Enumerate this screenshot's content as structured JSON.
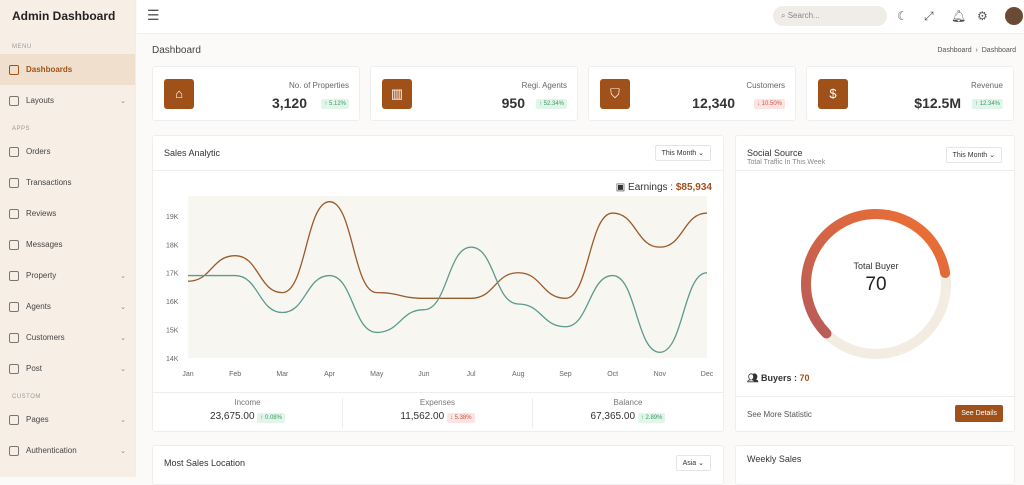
{
  "app_title": "Admin Dashboard",
  "sidebar": {
    "sections": [
      "MENU",
      "APPS",
      "CUSTOM"
    ],
    "items": [
      {
        "label": "Dashboards",
        "chev": false
      },
      {
        "label": "Layouts",
        "chev": true
      },
      {
        "label": "Orders",
        "chev": false
      },
      {
        "label": "Transactions",
        "chev": false
      },
      {
        "label": "Reviews",
        "chev": false
      },
      {
        "label": "Messages",
        "chev": false
      },
      {
        "label": "Property",
        "chev": true
      },
      {
        "label": "Agents",
        "chev": true
      },
      {
        "label": "Customers",
        "chev": true
      },
      {
        "label": "Post",
        "chev": true
      },
      {
        "label": "Pages",
        "chev": true
      },
      {
        "label": "Authentication",
        "chev": true
      }
    ]
  },
  "topbar": {
    "search_placeholder": "Search..."
  },
  "page": {
    "title": "Dashboard",
    "breadcrumb": [
      "Dashboard",
      "Dashboard"
    ]
  },
  "stats": [
    {
      "label": "No. of Properties",
      "value": "3,120",
      "change": "↑ 5.12%",
      "trend": "up",
      "icon": "house-icon"
    },
    {
      "label": "Regi. Agents",
      "value": "950",
      "change": "↑ 52.34%",
      "trend": "up",
      "icon": "building-icon"
    },
    {
      "label": "Customers",
      "value": "12,340",
      "change": "↓ 10.50%",
      "trend": "down",
      "icon": "user-shield-icon"
    },
    {
      "label": "Revenue",
      "value": "$12.5M",
      "change": "↑ 12.34%",
      "trend": "up",
      "icon": "money-bag-icon"
    }
  ],
  "sales": {
    "title": "Sales Analytic",
    "filter": "This Month",
    "earnings_label": "Earnings :",
    "earnings_value": "$85,934",
    "summary": [
      {
        "label": "Income",
        "value": "23,675.00",
        "change": "↑ 0.08%",
        "trend": "up"
      },
      {
        "label": "Expenses",
        "value": "11,562.00",
        "change": "↓ 5.38%",
        "trend": "down"
      },
      {
        "label": "Balance",
        "value": "67,365.00",
        "change": "↑ 2.89%",
        "trend": "up"
      }
    ]
  },
  "chart_data": {
    "type": "line",
    "categories": [
      "Jan",
      "Feb",
      "Mar",
      "Apr",
      "May",
      "Jun",
      "Jul",
      "Aug",
      "Sep",
      "Oct",
      "Nov",
      "Dec"
    ],
    "yticks": [
      "14K",
      "15K",
      "16K",
      "17K",
      "18K",
      "19K"
    ],
    "ylim": [
      14,
      19.7
    ],
    "series": [
      {
        "values": [
          16.7,
          17.6,
          16.3,
          19.5,
          16.3,
          16.1,
          16.1,
          17.0,
          16.1,
          19.1,
          17.9,
          19.1
        ],
        "color": "#9a5a2a"
      },
      {
        "values": [
          16.9,
          16.9,
          15.6,
          16.9,
          14.9,
          15.7,
          17.9,
          15.9,
          15.1,
          16.9,
          14.2,
          17.0
        ],
        "color": "#5a9a90"
      }
    ]
  },
  "social": {
    "title": "Social Source",
    "subtitle": "Total Traffic In This Week",
    "filter": "This Month",
    "gauge_label": "Total Buyer",
    "gauge_value": "70",
    "gauge_fraction": 0.7,
    "buyers_label": "Buyers :",
    "buyers_value": "70",
    "more": "See More Statistic",
    "details": "See Details"
  },
  "location": {
    "title": "Most Sales Location",
    "filter": "Asia"
  },
  "weekly": {
    "title": "Weekly Sales"
  }
}
